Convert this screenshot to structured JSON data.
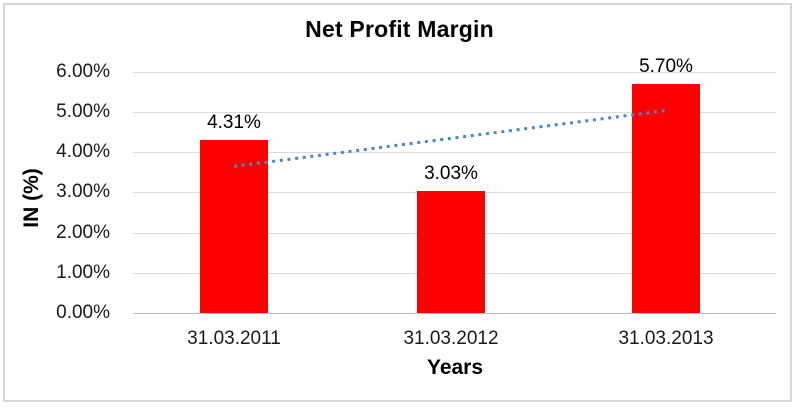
{
  "chart_data": {
    "type": "bar",
    "title": "Net Profit Margin",
    "xlabel": "Years",
    "ylabel": "IN (%)",
    "categories": [
      "31.03.2011",
      "31.03.2012",
      "31.03.2013"
    ],
    "values": [
      4.31,
      3.03,
      5.7
    ],
    "data_labels": [
      "4.31%",
      "3.03%",
      "5.70%"
    ],
    "y_ticks": [
      {
        "value": 0,
        "label": "0.00%"
      },
      {
        "value": 1,
        "label": "1.00%"
      },
      {
        "value": 2,
        "label": "2.00%"
      },
      {
        "value": 3,
        "label": "3.00%"
      },
      {
        "value": 4,
        "label": "4.00%"
      },
      {
        "value": 5,
        "label": "5.00%"
      },
      {
        "value": 6,
        "label": "6.00%"
      }
    ],
    "ylim": [
      0,
      6
    ],
    "grid": true,
    "legend": "none",
    "bar_color": "#ff0000",
    "trendline": {
      "type": "linear",
      "style": "dotted",
      "color": "#4a86c8",
      "start_value": 3.65,
      "end_value": 5.04
    }
  }
}
